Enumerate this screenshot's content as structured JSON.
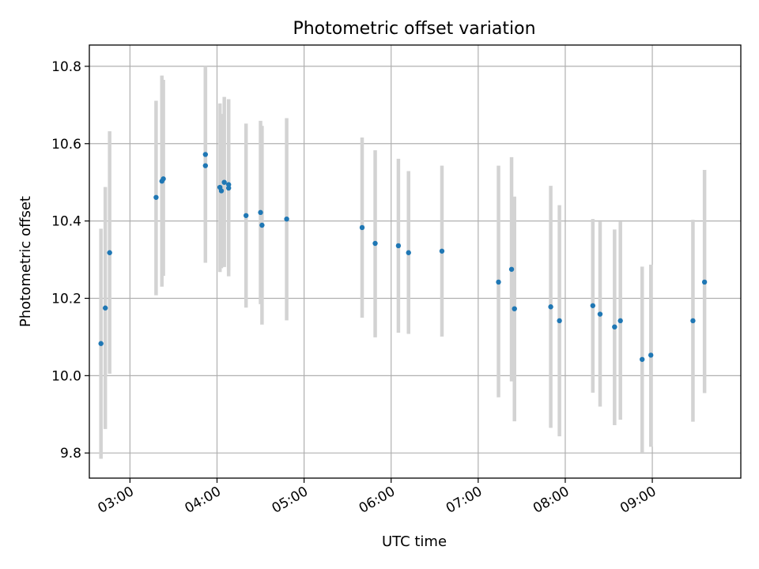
{
  "chart_data": {
    "type": "scatter",
    "title": "Photometric offset variation",
    "xlabel": "UTC time",
    "ylabel": "Photometric offset",
    "x_tick_labels": [
      "03:00",
      "04:00",
      "05:00",
      "06:00",
      "07:00",
      "08:00",
      "09:00"
    ],
    "y_tick_labels": [
      "9.8",
      "10.0",
      "10.2",
      "10.4",
      "10.6",
      "10.8"
    ],
    "xlim": [
      "02:32",
      "10:01"
    ],
    "ylim": [
      9.735,
      10.855
    ],
    "grid": true,
    "error_bars": true,
    "colors": {
      "points": "#1f77b4",
      "error_bars": "#d3d3d3",
      "grid": "#b0b0b0"
    },
    "points": [
      {
        "x": "02:40",
        "y": 10.083,
        "yerr_low": 9.785,
        "yerr_high": 10.38
      },
      {
        "x": "02:43",
        "y": 10.175,
        "yerr_low": 9.862,
        "yerr_high": 10.488
      },
      {
        "x": "02:46",
        "y": 10.318,
        "yerr_low": 10.005,
        "yerr_high": 10.632
      },
      {
        "x": "03:18",
        "y": 10.461,
        "yerr_low": 10.208,
        "yerr_high": 10.711
      },
      {
        "x": "03:22",
        "y": 10.503,
        "yerr_low": 10.23,
        "yerr_high": 10.776
      },
      {
        "x": "03:23",
        "y": 10.509,
        "yerr_low": 10.258,
        "yerr_high": 10.765
      },
      {
        "x": "03:52",
        "y": 10.572,
        "yerr_low": 10.351,
        "yerr_high": 10.8
      },
      {
        "x": "03:52",
        "y": 10.543,
        "yerr_low": 10.292,
        "yerr_high": 10.793
      },
      {
        "x": "04:02",
        "y": 10.487,
        "yerr_low": 10.268,
        "yerr_high": 10.704
      },
      {
        "x": "04:03",
        "y": 10.478,
        "yerr_low": 10.278,
        "yerr_high": 10.677
      },
      {
        "x": "04:05",
        "y": 10.5,
        "yerr_low": 10.281,
        "yerr_high": 10.721
      },
      {
        "x": "04:08",
        "y": 10.494,
        "yerr_low": 10.273,
        "yerr_high": 10.715
      },
      {
        "x": "04:08",
        "y": 10.485,
        "yerr_low": 10.257,
        "yerr_high": 10.713
      },
      {
        "x": "04:20",
        "y": 10.414,
        "yerr_low": 10.176,
        "yerr_high": 10.652
      },
      {
        "x": "04:30",
        "y": 10.422,
        "yerr_low": 10.185,
        "yerr_high": 10.659
      },
      {
        "x": "04:31",
        "y": 10.389,
        "yerr_low": 10.132,
        "yerr_high": 10.646
      },
      {
        "x": "04:48",
        "y": 10.405,
        "yerr_low": 10.143,
        "yerr_high": 10.666
      },
      {
        "x": "05:40",
        "y": 10.383,
        "yerr_low": 10.15,
        "yerr_high": 10.616
      },
      {
        "x": "05:49",
        "y": 10.342,
        "yerr_low": 10.099,
        "yerr_high": 10.583
      },
      {
        "x": "06:05",
        "y": 10.336,
        "yerr_low": 10.111,
        "yerr_high": 10.561
      },
      {
        "x": "06:12",
        "y": 10.318,
        "yerr_low": 10.108,
        "yerr_high": 10.529
      },
      {
        "x": "06:35",
        "y": 10.322,
        "yerr_low": 10.101,
        "yerr_high": 10.543
      },
      {
        "x": "07:14",
        "y": 10.242,
        "yerr_low": 9.944,
        "yerr_high": 10.543
      },
      {
        "x": "07:23",
        "y": 10.275,
        "yerr_low": 9.985,
        "yerr_high": 10.565
      },
      {
        "x": "07:25",
        "y": 10.173,
        "yerr_low": 9.882,
        "yerr_high": 10.463
      },
      {
        "x": "07:50",
        "y": 10.178,
        "yerr_low": 9.865,
        "yerr_high": 10.491
      },
      {
        "x": "07:56",
        "y": 10.142,
        "yerr_low": 9.843,
        "yerr_high": 10.441
      },
      {
        "x": "08:19",
        "y": 10.181,
        "yerr_low": 9.956,
        "yerr_high": 10.405
      },
      {
        "x": "08:24",
        "y": 10.159,
        "yerr_low": 9.92,
        "yerr_high": 10.398
      },
      {
        "x": "08:34",
        "y": 10.126,
        "yerr_low": 9.872,
        "yerr_high": 10.378
      },
      {
        "x": "08:38",
        "y": 10.142,
        "yerr_low": 9.886,
        "yerr_high": 10.398
      },
      {
        "x": "08:53",
        "y": 10.042,
        "yerr_low": 9.802,
        "yerr_high": 10.282
      },
      {
        "x": "08:59",
        "y": 10.053,
        "yerr_low": 9.816,
        "yerr_high": 10.287
      },
      {
        "x": "09:28",
        "y": 10.142,
        "yerr_low": 9.881,
        "yerr_high": 10.403
      },
      {
        "x": "09:36",
        "y": 10.242,
        "yerr_low": 9.955,
        "yerr_high": 10.532
      }
    ]
  }
}
